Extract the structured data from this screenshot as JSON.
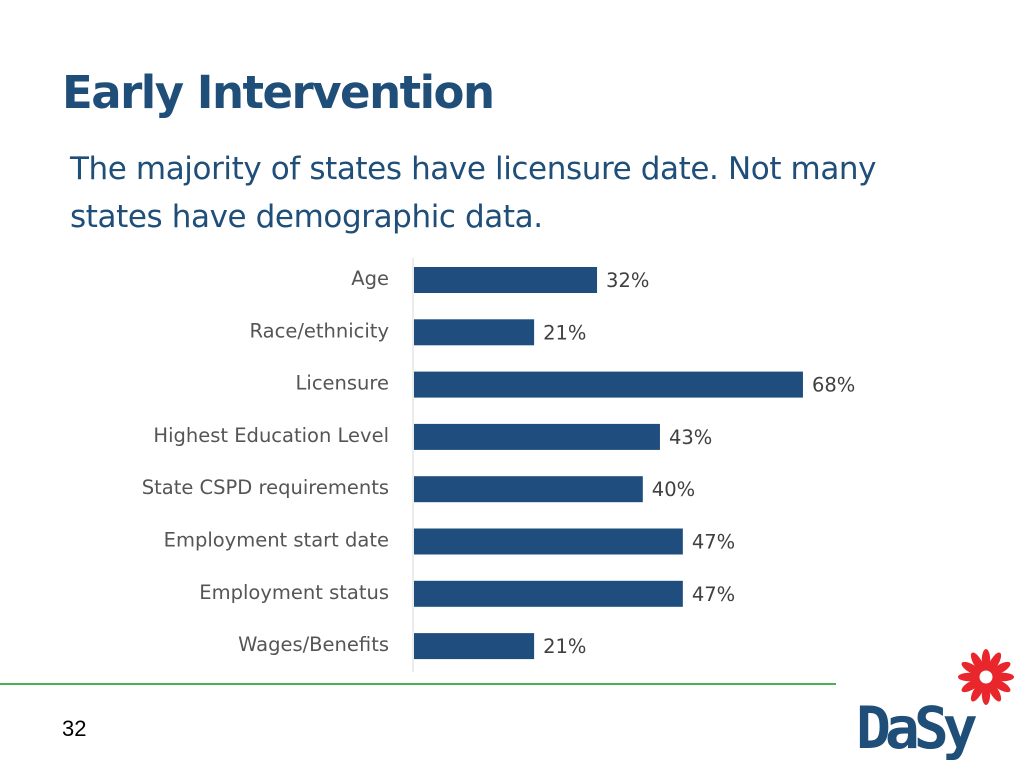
{
  "slide": {
    "title": "Early Intervention",
    "subtitle": "The majority of states have licensure date.  Not many\nstates have demographic data.",
    "page_number": "32"
  },
  "logo": {
    "text": "DaSy",
    "icon": "red-flower-icon",
    "text_color": "#1f4e79",
    "flower_color": "#e8262c"
  },
  "colors": {
    "bar": "#1f4e7e",
    "title": "#1f4e79",
    "footer_rule": "#4caf50"
  },
  "chart_data": {
    "type": "bar",
    "orientation": "horizontal",
    "categories": [
      "Age",
      "Race/ethnicity",
      "Licensure",
      "Highest Education Level",
      "State CSPD requirements",
      "Employment start date",
      "Employment status",
      "Wages/Benefits"
    ],
    "values": [
      32,
      21,
      68,
      43,
      40,
      47,
      47,
      21
    ],
    "value_labels": [
      "32%",
      "21%",
      "68%",
      "43%",
      "40%",
      "47%",
      "47%",
      "21%"
    ],
    "unit": "%",
    "xlim": [
      0,
      100
    ],
    "grid": false,
    "legend": "none",
    "title": "",
    "xlabel": "",
    "ylabel": ""
  }
}
